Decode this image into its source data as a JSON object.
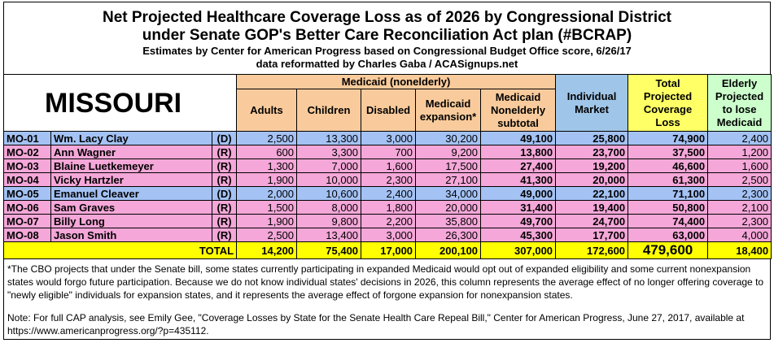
{
  "header": {
    "title_lines": [
      "Net Projected Healthcare Coverage Loss as of 2026 by Congressional District",
      "under Senate GOP's Better Care Reconciliation Act plan (#BCRAP)"
    ],
    "subtitle": "Estimates by Center for American Progress based on Congressional Budget Office score, 6/26/17",
    "credit": "data reformatted by Charles Gaba / ACASignups.net"
  },
  "table": {
    "state": "MISSOURI",
    "group_header": "Medicaid (nonelderly)",
    "columns": [
      "Adults",
      "Children",
      "Disabled",
      "Medicaid expansion*",
      "Medicaid Nonelderly subtotal",
      "Individual Market",
      "Total Projected Coverage Loss",
      "Elderly Projected to lose Medicaid"
    ],
    "rows": [
      [
        "MO-01",
        "Wm. Lacy Clay",
        "(D)",
        "2,500",
        "13,300",
        "3,000",
        "30,200",
        "49,100",
        "25,800",
        "74,900",
        "2,400"
      ],
      [
        "MO-02",
        "Ann Wagner",
        "(R)",
        "600",
        "3,300",
        "700",
        "9,200",
        "13,800",
        "23,700",
        "37,500",
        "1,200"
      ],
      [
        "MO-03",
        "Blaine Luetkemeyer",
        "(R)",
        "1,300",
        "7,000",
        "1,600",
        "17,500",
        "27,400",
        "19,200",
        "46,600",
        "1,600"
      ],
      [
        "MO-04",
        "Vicky Hartzler",
        "(R)",
        "1,900",
        "10,000",
        "2,300",
        "27,100",
        "41,300",
        "20,000",
        "61,300",
        "2,500"
      ],
      [
        "MO-05",
        "Emanuel Cleaver",
        "(D)",
        "2,000",
        "10,600",
        "2,400",
        "34,000",
        "49,000",
        "22,100",
        "71,100",
        "2,300"
      ],
      [
        "MO-06",
        "Sam Graves",
        "(R)",
        "1,500",
        "8,000",
        "1,800",
        "20,000",
        "31,400",
        "19,400",
        "50,800",
        "2,100"
      ],
      [
        "MO-07",
        "Billy Long",
        "(R)",
        "1,900",
        "9,800",
        "2,200",
        "35,800",
        "49,700",
        "24,700",
        "74,400",
        "2,300"
      ],
      [
        "MO-08",
        "Jason Smith",
        "(R)",
        "2,500",
        "13,400",
        "3,000",
        "26,300",
        "45,300",
        "17,700",
        "63,000",
        "4,000"
      ]
    ],
    "total": {
      "label": "TOTAL",
      "values": [
        "14,200",
        "75,400",
        "17,000",
        "200,100",
        "307,000",
        "172,600",
        "479,600",
        "18,400"
      ]
    }
  },
  "notes": [
    "*The CBO projects that under the Senate bill, some states currently participating in expanded Medicaid would opt out of expanded eligibility and some current nonexpansion states would forgo future participation. Because we do not know individual states' decisions in 2026, this column represents the average effect of no longer offering coverage to \"newly eligible\" individuals for expansion states, and it represents the average effect of forgone expansion for nonexpansion states.",
    "Note: For full CAP analysis, see Emily Gee, \"Coverage Losses by State for the Senate Health Care Repeal Bill,\" Center for American Progress, June 27, 2017, available at https://www.americanprogress.org/?p=435112."
  ]
}
